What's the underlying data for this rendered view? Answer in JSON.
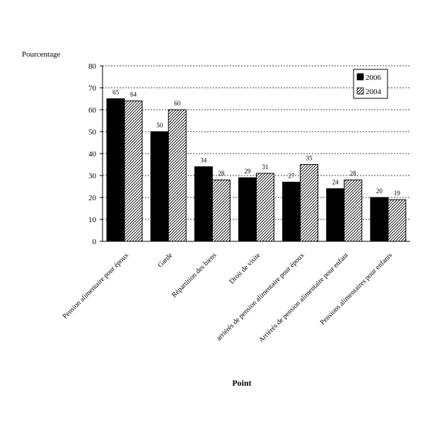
{
  "chart_data": {
    "type": "bar",
    "ylabel": "Pourcentage",
    "xlabel": "Point",
    "ylim": [
      0,
      80
    ],
    "yticks": [
      0,
      10,
      20,
      30,
      40,
      50,
      60,
      70,
      80
    ],
    "grid": "horizontal dashed",
    "legend_position": "top-right",
    "categories": [
      "Pension alimentaire pour époux",
      "Garde",
      "Répartition des biens",
      "Droit de visite",
      "arriérés de pension alimentaire pour époux",
      "Arriérés de pension alimentaire pour enfant",
      "Pensions alimentaires pour enfants"
    ],
    "series": [
      {
        "name": "2006",
        "values": [
          65,
          50,
          34,
          29,
          27,
          24,
          20
        ],
        "data_labels": [
          "65",
          "50",
          "34",
          "29",
          "27",
          "24",
          "20"
        ],
        "fill": "#000000"
      },
      {
        "name": "2004",
        "values": [
          64,
          60,
          28,
          31,
          35,
          28,
          19
        ],
        "data_labels": [
          "64",
          "60",
          "28",
          "31",
          "35",
          "28",
          "19"
        ],
        "fill": "hatched"
      }
    ]
  }
}
